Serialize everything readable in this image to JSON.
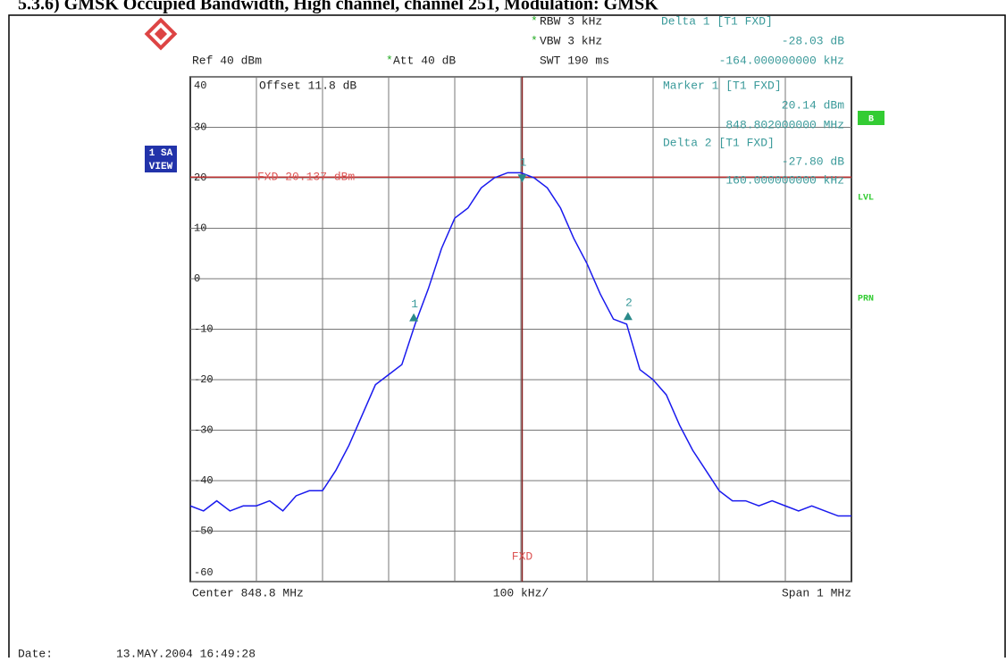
{
  "header": {
    "title": "5.3.6) GMSK Occupied Bandwidth, High channel, channel 251, Modulation: GMSK"
  },
  "settings": {
    "rbw": "RBW 3 kHz",
    "vbw": "VBW 3 kHz",
    "swt": "SWT 190 ms",
    "ref": "Ref  40 dBm",
    "att": "Att  40 dB",
    "offset": "Offset  11.8 dB"
  },
  "marker_info": {
    "delta1_title": "Delta 1 [T1 FXD]",
    "delta1_level": "-28.03 dB",
    "delta1_freq": "-164.000000000 kHz",
    "marker1_title": "Marker 1 [T1 FXD]",
    "marker1_level": "20.14 dBm",
    "marker1_freq": "848.802000000 MHz",
    "delta2_title": "Delta 2 [T1 FXD]",
    "delta2_level": "-27.80 dB",
    "delta2_freq": "160.000000000 kHz"
  },
  "side": {
    "sa": "1 SA",
    "view": "VIEW",
    "b": "B",
    "lvl": "LVL",
    "prn": "PRN"
  },
  "footer": {
    "center": "Center 848.8 MHz",
    "div": "100 kHz/",
    "span": "Span 1 MHz",
    "date_label": "Date:",
    "date": "13.MAY.2004  16:49:28"
  },
  "chart_data": {
    "type": "line",
    "x": [
      848.3,
      848.32,
      848.34,
      848.36,
      848.38,
      848.4,
      848.42,
      848.44,
      848.46,
      848.48,
      848.5,
      848.52,
      848.54,
      848.56,
      848.58,
      848.6,
      848.62,
      848.64,
      848.66,
      848.68,
      848.7,
      848.72,
      848.74,
      848.76,
      848.78,
      848.8,
      848.82,
      848.84,
      848.86,
      848.88,
      848.9,
      848.92,
      848.94,
      848.96,
      848.98,
      849.0,
      849.02,
      849.04,
      849.06,
      849.08,
      849.1,
      849.12,
      849.14,
      849.16,
      849.18,
      849.2,
      849.22,
      849.24,
      849.26,
      849.28,
      849.3
    ],
    "series": [
      {
        "color": "#1a1aee",
        "values": [
          -45,
          -46,
          -44,
          -46,
          -45,
          -45,
          -44,
          -46,
          -43,
          -42,
          -42,
          -38,
          -33,
          -27,
          -21,
          -19,
          -17,
          -9,
          -2,
          6,
          12,
          14,
          18,
          20,
          21,
          21,
          20,
          18,
          14,
          8,
          3,
          -3,
          -8,
          -9,
          -18,
          -20,
          -23,
          -29,
          -34,
          -38,
          -42,
          -44,
          -44,
          -45,
          -44,
          -45,
          -46,
          -45,
          -46,
          -47,
          -47
        ]
      }
    ],
    "xlim": [
      848.3,
      849.3
    ],
    "ylim": [
      -60,
      40
    ],
    "yticks": [
      40,
      30,
      20,
      10,
      0,
      -10,
      -20,
      -30,
      -40,
      -50,
      -60
    ],
    "grid": true,
    "markers": [
      {
        "name": "1",
        "x": 848.802,
        "y": 20.14
      },
      {
        "name": "1",
        "x": 848.638,
        "y": -7.89
      },
      {
        "name": "2",
        "x": 848.962,
        "y": -7.66
      }
    ],
    "reference_line": {
      "label": "FXD 20.137 dBm",
      "value": 20.137
    },
    "frequency_line": {
      "label": "FXD",
      "x": 848.802
    }
  }
}
